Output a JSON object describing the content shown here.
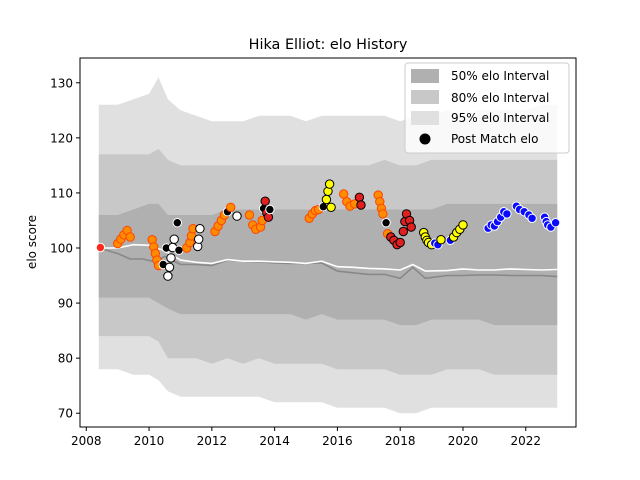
{
  "chart_data": {
    "type": "line",
    "title": "Hika Elliot: elo History",
    "xlabel": "",
    "ylabel": "elo score",
    "xlim": [
      2007.8,
      2023.6
    ],
    "ylim": [
      67.5,
      134.5
    ],
    "x_ticks": [
      2008,
      2010,
      2012,
      2014,
      2016,
      2018,
      2020,
      2022
    ],
    "y_ticks": [
      70,
      80,
      90,
      100,
      110,
      120,
      130
    ],
    "legend": {
      "position": "top-right",
      "entries": [
        {
          "label": "50% elo Interval",
          "color": "#b0b0b0",
          "kind": "patch"
        },
        {
          "label": "80% elo Interval",
          "color": "#c8c8c8",
          "kind": "patch"
        },
        {
          "label": "95% elo Interval",
          "color": "#e0e0e0",
          "kind": "patch"
        },
        {
          "label": "Post Match elo",
          "color": "#000000",
          "kind": "marker"
        }
      ]
    },
    "colors": {
      "band95": "#e0e0e0",
      "band80": "#c8c8c8",
      "band50": "#b0b0b0",
      "mean_line": "#888888",
      "opponent_line": "#ffffff",
      "marker_edge_default": "#000000"
    },
    "bands": {
      "x": [
        2008.4,
        2009.0,
        2009.5,
        2010.0,
        2010.3,
        2010.6,
        2011.0,
        2011.5,
        2012.0,
        2012.5,
        2013.0,
        2013.5,
        2014.0,
        2014.5,
        2015.0,
        2015.5,
        2016.0,
        2016.5,
        2017.0,
        2017.5,
        2018.0,
        2018.5,
        2019.0,
        2019.5,
        2020.0,
        2020.5,
        2021.0,
        2021.5,
        2022.0,
        2022.5,
        2023.0
      ],
      "upper95": [
        126,
        126,
        127,
        128,
        131,
        127,
        125,
        124,
        123,
        123,
        123,
        124,
        124,
        124,
        123,
        124,
        124,
        124,
        124,
        124,
        123,
        124,
        124,
        125,
        124,
        125,
        125,
        125,
        125,
        126,
        126
      ],
      "upper80": [
        117,
        117,
        117,
        117,
        118,
        116,
        115,
        115,
        115,
        115,
        115,
        115,
        115,
        115,
        115,
        115,
        115,
        115,
        115,
        116,
        115,
        115,
        116,
        116,
        116,
        116,
        116,
        116,
        116,
        116,
        116
      ],
      "upper50": [
        106,
        106,
        107,
        108,
        108,
        106,
        106,
        106,
        106,
        107,
        107,
        107,
        107,
        107,
        107,
        107,
        107,
        107,
        107,
        107,
        107,
        107,
        107,
        108,
        108,
        108,
        108,
        108,
        108,
        108,
        108
      ],
      "lower50": [
        91,
        91,
        91,
        91,
        90,
        89,
        88,
        88,
        88,
        88,
        88,
        88,
        88,
        88,
        87,
        88,
        87,
        87,
        87,
        87,
        86,
        86,
        87,
        87,
        87,
        87,
        86,
        86,
        86,
        86,
        86
      ],
      "lower80": [
        84,
        84,
        84,
        84,
        83,
        80,
        80,
        80,
        79,
        80,
        79,
        80,
        79,
        79,
        79,
        79,
        78,
        78,
        78,
        78,
        77,
        77,
        77,
        78,
        78,
        78,
        77,
        77,
        77,
        77,
        77
      ],
      "lower95": [
        78,
        78,
        77,
        77,
        76,
        74,
        73,
        73,
        73,
        73,
        73,
        73,
        72,
        72,
        72,
        72,
        71,
        71,
        71,
        71,
        70,
        70,
        71,
        71,
        71,
        71,
        71,
        71,
        71,
        71,
        71
      ]
    },
    "series": [
      {
        "role": "mean",
        "x": [
          2008.4,
          2009.0,
          2009.4,
          2009.8,
          2010.2,
          2010.5,
          2011.0,
          2011.5,
          2012.0,
          2012.5,
          2013.0,
          2013.5,
          2014.0,
          2014.5,
          2015.0,
          2015.5,
          2016.0,
          2016.5,
          2017.0,
          2017.5,
          2018.0,
          2018.4,
          2018.8,
          2019.5,
          2020.0,
          2020.5,
          2021.0,
          2021.5,
          2022.0,
          2022.5,
          2023.0
        ],
        "y": [
          100,
          99,
          98,
          98,
          97.5,
          98.5,
          97,
          97,
          96.8,
          97.8,
          97.6,
          97.5,
          97.3,
          97.2,
          97.2,
          97.3,
          95.8,
          95.5,
          95.2,
          95.2,
          94.5,
          96.5,
          94.5,
          95.0,
          95.0,
          95.1,
          95.1,
          95.0,
          95.0,
          95.0,
          94.8
        ]
      },
      {
        "role": "opponent",
        "x": [
          2008.4,
          2009.0,
          2009.5,
          2010.0,
          2010.5,
          2011.0,
          2011.5,
          2012.0,
          2012.5,
          2013.0,
          2013.5,
          2014.0,
          2014.5,
          2015.0,
          2015.5,
          2016.0,
          2016.5,
          2017.0,
          2017.5,
          2018.0,
          2018.4,
          2018.8,
          2019.5,
          2020.0,
          2020.5,
          2021.0,
          2021.5,
          2022.0,
          2022.5,
          2023.0
        ],
        "y": [
          100,
          100,
          100.6,
          100.5,
          99.5,
          97.8,
          97.4,
          97.2,
          97.9,
          97.6,
          97.6,
          97.5,
          97.4,
          97.2,
          97.6,
          96.6,
          96.5,
          96.3,
          96.2,
          96.0,
          97.0,
          95.8,
          95.9,
          96.2,
          96.0,
          96.0,
          96.2,
          96.1,
          96.0,
          96.1
        ]
      }
    ],
    "points": [
      {
        "x": 2008.45,
        "y": 100.1,
        "fill": "#ff2a1a",
        "edge": "#ffffff"
      },
      {
        "x": 2009.0,
        "y": 100.8,
        "fill": "#ff8c00",
        "edge": "#ff4400"
      },
      {
        "x": 2009.1,
        "y": 101.6,
        "fill": "#ff8c00",
        "edge": "#ff4400"
      },
      {
        "x": 2009.2,
        "y": 102.4,
        "fill": "#ff8c00",
        "edge": "#ff4400"
      },
      {
        "x": 2009.3,
        "y": 103.2,
        "fill": "#ff8c00",
        "edge": "#ff4400"
      },
      {
        "x": 2009.4,
        "y": 102.0,
        "fill": "#ff8c00",
        "edge": "#ff4400"
      },
      {
        "x": 2010.1,
        "y": 101.5,
        "fill": "#ff8c00",
        "edge": "#ff4400"
      },
      {
        "x": 2010.15,
        "y": 100.2,
        "fill": "#ff8c00",
        "edge": "#ff4400"
      },
      {
        "x": 2010.2,
        "y": 99.0,
        "fill": "#ff8c00",
        "edge": "#ff4400"
      },
      {
        "x": 2010.25,
        "y": 97.8,
        "fill": "#ff8c00",
        "edge": "#ff4400"
      },
      {
        "x": 2010.3,
        "y": 96.8,
        "fill": "#ff8c00",
        "edge": "#ff4400"
      },
      {
        "x": 2010.45,
        "y": 97.0,
        "fill": "#000000",
        "edge": "#ffffff"
      },
      {
        "x": 2010.55,
        "y": 100.0,
        "fill": "#000000",
        "edge": "#ffffff"
      },
      {
        "x": 2010.6,
        "y": 94.9,
        "fill": "#ffffff",
        "edge": "#000000"
      },
      {
        "x": 2010.65,
        "y": 96.5,
        "fill": "#ffffff",
        "edge": "#000000"
      },
      {
        "x": 2010.7,
        "y": 98.2,
        "fill": "#ffffff",
        "edge": "#000000"
      },
      {
        "x": 2010.75,
        "y": 100.1,
        "fill": "#ffffff",
        "edge": "#000000"
      },
      {
        "x": 2010.8,
        "y": 101.6,
        "fill": "#ffffff",
        "edge": "#000000"
      },
      {
        "x": 2010.9,
        "y": 104.6,
        "fill": "#000000",
        "edge": "#ffffff"
      },
      {
        "x": 2010.95,
        "y": 99.6,
        "fill": "#000000",
        "edge": "#ffffff"
      },
      {
        "x": 2011.2,
        "y": 100.0,
        "fill": "#ff8c00",
        "edge": "#ff4400"
      },
      {
        "x": 2011.3,
        "y": 101.0,
        "fill": "#ff8c00",
        "edge": "#ff4400"
      },
      {
        "x": 2011.35,
        "y": 102.2,
        "fill": "#ff8c00",
        "edge": "#ff4400"
      },
      {
        "x": 2011.4,
        "y": 103.5,
        "fill": "#ff8c00",
        "edge": "#ff4400"
      },
      {
        "x": 2011.55,
        "y": 100.3,
        "fill": "#ffffff",
        "edge": "#000000"
      },
      {
        "x": 2011.58,
        "y": 101.6,
        "fill": "#ffffff",
        "edge": "#000000"
      },
      {
        "x": 2011.62,
        "y": 103.5,
        "fill": "#ffffff",
        "edge": "#000000"
      },
      {
        "x": 2012.1,
        "y": 103.0,
        "fill": "#ff8c00",
        "edge": "#ff4400"
      },
      {
        "x": 2012.2,
        "y": 104.0,
        "fill": "#ff8c00",
        "edge": "#ff4400"
      },
      {
        "x": 2012.3,
        "y": 105.0,
        "fill": "#ff8c00",
        "edge": "#ff4400"
      },
      {
        "x": 2012.4,
        "y": 106.0,
        "fill": "#ff8c00",
        "edge": "#ff4400"
      },
      {
        "x": 2012.5,
        "y": 106.6,
        "fill": "#000000",
        "edge": "#ffffff"
      },
      {
        "x": 2012.6,
        "y": 107.4,
        "fill": "#ff8c00",
        "edge": "#ff4400"
      },
      {
        "x": 2012.8,
        "y": 105.8,
        "fill": "#ffffff",
        "edge": "#000000"
      },
      {
        "x": 2013.2,
        "y": 106.0,
        "fill": "#ff8c00",
        "edge": "#ff4400"
      },
      {
        "x": 2013.3,
        "y": 104.2,
        "fill": "#ff8c00",
        "edge": "#ff4400"
      },
      {
        "x": 2013.4,
        "y": 103.4,
        "fill": "#ff8c00",
        "edge": "#ff4400"
      },
      {
        "x": 2013.55,
        "y": 103.8,
        "fill": "#ff8c00",
        "edge": "#ff4400"
      },
      {
        "x": 2013.6,
        "y": 105.0,
        "fill": "#ff8c00",
        "edge": "#ff4400"
      },
      {
        "x": 2013.65,
        "y": 107.2,
        "fill": "#000000",
        "edge": "#ffffff"
      },
      {
        "x": 2013.7,
        "y": 108.5,
        "fill": "#e02020",
        "edge": "#000000"
      },
      {
        "x": 2013.75,
        "y": 106.4,
        "fill": "#e02020",
        "edge": "#000000"
      },
      {
        "x": 2013.8,
        "y": 105.6,
        "fill": "#e02020",
        "edge": "#000000"
      },
      {
        "x": 2013.85,
        "y": 107.0,
        "fill": "#000000",
        "edge": "#ffffff"
      },
      {
        "x": 2015.1,
        "y": 105.4,
        "fill": "#ff8c00",
        "edge": "#ff4400"
      },
      {
        "x": 2015.2,
        "y": 106.2,
        "fill": "#ff8c00",
        "edge": "#ff4400"
      },
      {
        "x": 2015.3,
        "y": 106.8,
        "fill": "#ff8c00",
        "edge": "#ff4400"
      },
      {
        "x": 2015.4,
        "y": 107.0,
        "fill": "#ff8c00",
        "edge": "#ff4400"
      },
      {
        "x": 2015.55,
        "y": 107.5,
        "fill": "#000000",
        "edge": "#ffffff"
      },
      {
        "x": 2015.65,
        "y": 108.8,
        "fill": "#ffff00",
        "edge": "#000000"
      },
      {
        "x": 2015.7,
        "y": 110.3,
        "fill": "#ffff00",
        "edge": "#000000"
      },
      {
        "x": 2015.75,
        "y": 111.6,
        "fill": "#ffff00",
        "edge": "#000000"
      },
      {
        "x": 2015.8,
        "y": 107.4,
        "fill": "#ffff00",
        "edge": "#000000"
      },
      {
        "x": 2016.2,
        "y": 109.8,
        "fill": "#ff8c00",
        "edge": "#ff4400"
      },
      {
        "x": 2016.3,
        "y": 108.4,
        "fill": "#ff8c00",
        "edge": "#ff4400"
      },
      {
        "x": 2016.4,
        "y": 107.6,
        "fill": "#ff8c00",
        "edge": "#ff4400"
      },
      {
        "x": 2016.55,
        "y": 108.0,
        "fill": "#ff8c00",
        "edge": "#ff4400"
      },
      {
        "x": 2016.7,
        "y": 109.2,
        "fill": "#e02020",
        "edge": "#000000"
      },
      {
        "x": 2016.75,
        "y": 107.8,
        "fill": "#e02020",
        "edge": "#000000"
      },
      {
        "x": 2017.3,
        "y": 109.6,
        "fill": "#ff8c00",
        "edge": "#ff4400"
      },
      {
        "x": 2017.35,
        "y": 108.4,
        "fill": "#ff8c00",
        "edge": "#ff4400"
      },
      {
        "x": 2017.4,
        "y": 107.2,
        "fill": "#ff8c00",
        "edge": "#ff4400"
      },
      {
        "x": 2017.45,
        "y": 106.2,
        "fill": "#ff8c00",
        "edge": "#ff4400"
      },
      {
        "x": 2017.55,
        "y": 104.6,
        "fill": "#000000",
        "edge": "#ffffff"
      },
      {
        "x": 2017.6,
        "y": 102.6,
        "fill": "#ff8c00",
        "edge": "#ff4400"
      },
      {
        "x": 2017.7,
        "y": 102.0,
        "fill": "#e02020",
        "edge": "#000000"
      },
      {
        "x": 2017.8,
        "y": 101.4,
        "fill": "#e02020",
        "edge": "#000000"
      },
      {
        "x": 2017.9,
        "y": 100.6,
        "fill": "#e02020",
        "edge": "#000000"
      },
      {
        "x": 2018.0,
        "y": 101.0,
        "fill": "#e02020",
        "edge": "#000000"
      },
      {
        "x": 2018.1,
        "y": 103.0,
        "fill": "#e02020",
        "edge": "#000000"
      },
      {
        "x": 2018.15,
        "y": 104.8,
        "fill": "#e02020",
        "edge": "#000000"
      },
      {
        "x": 2018.2,
        "y": 106.2,
        "fill": "#e02020",
        "edge": "#000000"
      },
      {
        "x": 2018.3,
        "y": 105.0,
        "fill": "#e02020",
        "edge": "#000000"
      },
      {
        "x": 2018.35,
        "y": 103.8,
        "fill": "#e02020",
        "edge": "#000000"
      },
      {
        "x": 2018.75,
        "y": 102.8,
        "fill": "#ffff00",
        "edge": "#000000"
      },
      {
        "x": 2018.8,
        "y": 102.0,
        "fill": "#ffff00",
        "edge": "#000000"
      },
      {
        "x": 2018.85,
        "y": 101.4,
        "fill": "#ffff00",
        "edge": "#000000"
      },
      {
        "x": 2018.9,
        "y": 101.0,
        "fill": "#ffff00",
        "edge": "#000000"
      },
      {
        "x": 2019.0,
        "y": 100.6,
        "fill": "#ffff00",
        "edge": "#000000"
      },
      {
        "x": 2019.1,
        "y": 100.9,
        "fill": "#0a0aff",
        "edge": "#ffffff"
      },
      {
        "x": 2019.2,
        "y": 100.6,
        "fill": "#0a0aff",
        "edge": "#ffffff"
      },
      {
        "x": 2019.3,
        "y": 101.5,
        "fill": "#ffff00",
        "edge": "#000000"
      },
      {
        "x": 2019.6,
        "y": 101.4,
        "fill": "#0a0aff",
        "edge": "#ffffff"
      },
      {
        "x": 2019.7,
        "y": 102.0,
        "fill": "#ffff00",
        "edge": "#000000"
      },
      {
        "x": 2019.8,
        "y": 102.8,
        "fill": "#ffff00",
        "edge": "#000000"
      },
      {
        "x": 2019.9,
        "y": 103.4,
        "fill": "#ffff00",
        "edge": "#000000"
      },
      {
        "x": 2020.0,
        "y": 104.2,
        "fill": "#ffff00",
        "edge": "#000000"
      },
      {
        "x": 2020.8,
        "y": 103.6,
        "fill": "#0a0aff",
        "edge": "#ffffff"
      },
      {
        "x": 2020.9,
        "y": 104.2,
        "fill": "#0a0aff",
        "edge": "#ffffff"
      },
      {
        "x": 2021.0,
        "y": 104.0,
        "fill": "#0a0aff",
        "edge": "#ffffff"
      },
      {
        "x": 2021.1,
        "y": 104.8,
        "fill": "#0a0aff",
        "edge": "#ffffff"
      },
      {
        "x": 2021.2,
        "y": 105.6,
        "fill": "#0a0aff",
        "edge": "#ffffff"
      },
      {
        "x": 2021.3,
        "y": 106.6,
        "fill": "#0a0aff",
        "edge": "#ffffff"
      },
      {
        "x": 2021.4,
        "y": 106.2,
        "fill": "#0a0aff",
        "edge": "#ffffff"
      },
      {
        "x": 2021.7,
        "y": 107.6,
        "fill": "#0a0aff",
        "edge": "#ffffff"
      },
      {
        "x": 2021.8,
        "y": 107.0,
        "fill": "#0a0aff",
        "edge": "#ffffff"
      },
      {
        "x": 2021.95,
        "y": 106.6,
        "fill": "#0a0aff",
        "edge": "#ffffff"
      },
      {
        "x": 2022.1,
        "y": 106.0,
        "fill": "#0a0aff",
        "edge": "#ffffff"
      },
      {
        "x": 2022.2,
        "y": 105.4,
        "fill": "#0a0aff",
        "edge": "#ffffff"
      },
      {
        "x": 2022.6,
        "y": 105.6,
        "fill": "#0a0aff",
        "edge": "#ffffff"
      },
      {
        "x": 2022.65,
        "y": 104.8,
        "fill": "#0a0aff",
        "edge": "#ffffff"
      },
      {
        "x": 2022.7,
        "y": 104.2,
        "fill": "#0a0aff",
        "edge": "#ffffff"
      },
      {
        "x": 2022.8,
        "y": 103.8,
        "fill": "#0a0aff",
        "edge": "#ffffff"
      },
      {
        "x": 2022.95,
        "y": 104.6,
        "fill": "#0a0aff",
        "edge": "#ffffff"
      }
    ]
  }
}
